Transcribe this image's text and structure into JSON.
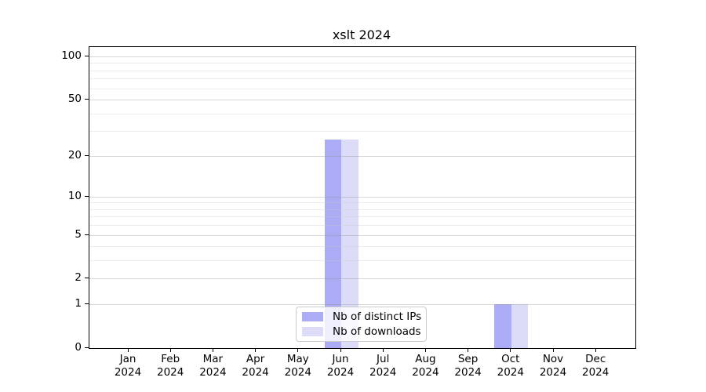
{
  "figure": {
    "title": "xslt 2024"
  },
  "chart_data": {
    "type": "bar",
    "title": "xslt 2024",
    "categories": [
      "Jan",
      "Feb",
      "Mar",
      "Apr",
      "May",
      "Jun",
      "Jul",
      "Aug",
      "Sep",
      "Oct",
      "Nov",
      "Dec"
    ],
    "year_label": "2024",
    "series": [
      {
        "name": "Nb of distinct IPs",
        "color": "#ababf6",
        "values": [
          0,
          0,
          0,
          0,
          0,
          26,
          0,
          0,
          0,
          1,
          0,
          0
        ]
      },
      {
        "name": "Nb of downloads",
        "color": "#dcdcf8",
        "values": [
          0,
          0,
          0,
          0,
          0,
          26,
          0,
          0,
          0,
          1,
          0,
          0
        ]
      }
    ],
    "y_axis": {
      "scale": "log1p",
      "ticks": [
        0,
        1,
        2,
        5,
        10,
        20,
        50,
        100
      ],
      "minor_ticks": [
        3,
        4,
        6,
        7,
        8,
        9,
        30,
        40,
        60,
        70,
        80,
        90
      ],
      "ylim": [
        0,
        116
      ]
    },
    "x_axis": {
      "tick_label_lines": 2
    },
    "legend": {
      "position": "lower center"
    },
    "grid": true
  },
  "colors": {
    "background": "#ffffff",
    "axis": "#000000",
    "grid_major": "#dddddd",
    "grid_minor": "#ececec",
    "bar_distinct_ips": "#ababf6",
    "bar_downloads": "#dcdcf8",
    "legend_border": "#cccccc"
  }
}
